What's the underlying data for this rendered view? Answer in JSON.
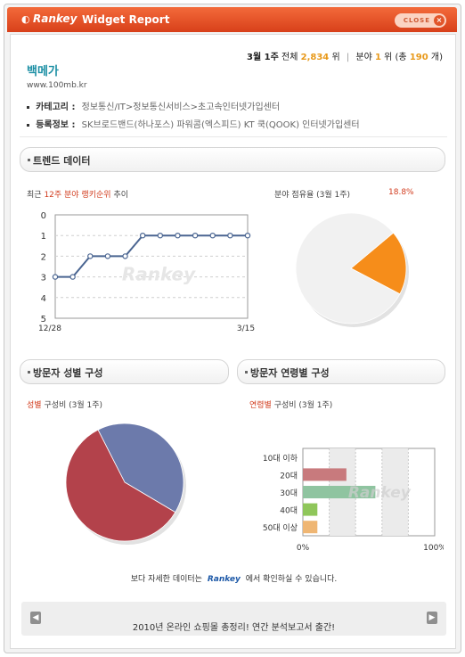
{
  "window": {
    "brand": "Rankey",
    "title": "Widget Report",
    "close_label": "CLOSE"
  },
  "rank": {
    "period": "3월 1주",
    "overall_label": "전체",
    "overall_value": "2,834",
    "overall_unit": "위",
    "category_label": "분야",
    "category_value": "1",
    "category_unit": "위",
    "total_prefix": "(총",
    "total_value": "190",
    "total_suffix": "개)"
  },
  "site": {
    "name": "백메가",
    "url": "www.100mb.kr",
    "category_label": "카테고리 :",
    "category_value": "정보통신/IT>정보통신서비스>초고속인터넷가입센터",
    "reg_label": "등록정보 :",
    "reg_value": "SK브로드밴드(하나포스) 파워콤(엑스피드) KT 쿡(QOOK) 인터넷가입센터"
  },
  "sections": {
    "trend": "트렌드 데이터",
    "gender": "방문자 성별 구성",
    "age": "방문자 연령별 구성"
  },
  "trend": {
    "title_prefix": "최근",
    "title_highlight": "12주 분야 랭키순위",
    "title_suffix": "추이"
  },
  "share": {
    "title": "분야 점유율 (3월 1주)",
    "percent": "18.8%"
  },
  "gender_block": {
    "title_highlight": "성별",
    "title_rest": "구성비 (3월 1주)"
  },
  "age_block": {
    "title_highlight": "연령별",
    "title_rest": "구성비 (3월 1주)"
  },
  "chart_data": [
    {
      "type": "line",
      "title": "최근 12주 분야 랭키순위 추이",
      "x": [
        "12/28",
        "",
        "",
        "",
        "",
        "",
        "",
        "",
        "",
        "",
        "",
        "3/15"
      ],
      "values": [
        3,
        3,
        2,
        2,
        2,
        1,
        1,
        1,
        1,
        1,
        1,
        1
      ],
      "ylim": [
        0,
        5
      ],
      "y_ticks": [
        0,
        1,
        2,
        3,
        4,
        5
      ],
      "y_inverted": true,
      "x_tick_labels": [
        "12/28",
        "3/15"
      ],
      "grid": true,
      "watermark": "Rankey",
      "color": "#4a6591"
    },
    {
      "type": "pie",
      "title": "분야 점유율 (3월 1주)",
      "slices": [
        {
          "label": "",
          "value": 18.8,
          "color": "#f68d1a"
        },
        {
          "label": "",
          "value": 81.2,
          "color": "#f1f1f1"
        }
      ]
    },
    {
      "type": "pie",
      "title": "성별 구성비 (3월 1주)",
      "slices": [
        {
          "label": "",
          "value": 41,
          "color": "#6c7aab"
        },
        {
          "label": "",
          "value": 59,
          "color": "#b3424b"
        }
      ]
    },
    {
      "type": "bar",
      "orientation": "horizontal",
      "title": "연령별 구성비 (3월 1주)",
      "categories": [
        "10대 이하",
        "20대",
        "30대",
        "40대",
        "50대 이상"
      ],
      "values": [
        0,
        33,
        55,
        11,
        11
      ],
      "colors": [
        "#c0c0c0",
        "#c87a7d",
        "#8fc4a0",
        "#8fc65a",
        "#efb673"
      ],
      "xlim": [
        0,
        100
      ],
      "x_tick_labels": [
        "0%",
        "100%"
      ],
      "watermark": "Rankey"
    }
  ],
  "footer": {
    "note_prefix": "보다 자세한 데이터는",
    "note_brand": "Rankey",
    "note_suffix": "에서 확인하실 수 있습니다."
  },
  "notice": {
    "text": "2010년 온라인 쇼핑몰 총정리! 연간 분석보고서 출간!"
  }
}
